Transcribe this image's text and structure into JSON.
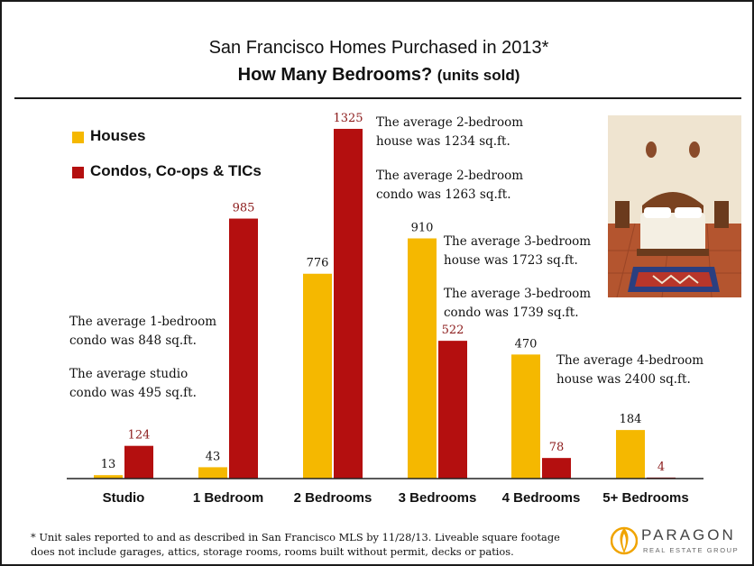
{
  "chart_data": {
    "type": "bar",
    "title": "San Francisco Homes Purchased in 2013*",
    "subtitle": "How Many Bedrooms?",
    "subtitle_note": "(units sold)",
    "categories": [
      "Studio",
      "1 Bedroom",
      "2 Bedrooms",
      "3 Bedrooms",
      "4  Bedrooms",
      "5+ Bedrooms"
    ],
    "series": [
      {
        "name": "Houses",
        "values": [
          13,
          43,
          776,
          910,
          470,
          184
        ],
        "color": "#f5b800"
      },
      {
        "name": "Condos, Co-ops & TICs",
        "values": [
          124,
          985,
          1325,
          522,
          78,
          4
        ],
        "color": "#b40f0f"
      }
    ],
    "ylim": [
      0,
      1400
    ],
    "grid": false,
    "legend_position": "top-left"
  },
  "annotations": {
    "note_2bd_house": [
      "The average 2-bedroom",
      "house was 1234 sq.ft."
    ],
    "note_2bd_condo": [
      "The average 2-bedroom",
      "condo was 1263 sq.ft."
    ],
    "note_3bd_house": [
      "The average 3-bedroom",
      "house was 1723 sq.ft."
    ],
    "note_3bd_condo": [
      "The average 3-bedroom",
      "condo was 1739 sq.ft."
    ],
    "note_4bd_house": [
      "The average 4-bedroom",
      "house was 2400 sq.ft."
    ],
    "note_1bd_condo": [
      "The average 1-bedroom",
      "condo was 848 sq.ft."
    ],
    "note_studio_condo": [
      "The average studio",
      "condo was 495 sq.ft."
    ]
  },
  "footnote": [
    "* Unit sales reported to and as described in San Francisco MLS by 11/28/13. Liveable square footage",
    "does not include garages, attics, storage rooms, rooms built without permit, decks or patios."
  ],
  "logo": {
    "name": "PARAGON",
    "tagline": "REAL ESTATE GROUP"
  },
  "photo": {
    "icon": "bedroom-photo"
  },
  "colors": {
    "houses": "#f5b800",
    "condos": "#b40f0f",
    "condo_label": "#8b1a1a"
  }
}
